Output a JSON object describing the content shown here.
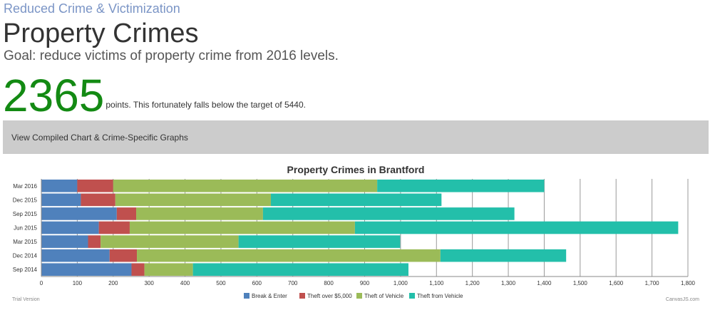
{
  "header": {
    "category": "Reduced Crime & Victimization",
    "title": "Property Crimes",
    "goal": "Goal: reduce victims of property crime from 2016 levels."
  },
  "score": {
    "value": "2365",
    "text": "points. This fortunately falls below the target of 5440."
  },
  "toggle": {
    "label": "View Compiled Chart & Crime-Specific Graphs"
  },
  "footer": {
    "trial": "Trial Version",
    "brand": "CanvasJS.com"
  },
  "chart_data": {
    "type": "bar",
    "orientation": "horizontal",
    "stacked": true,
    "title": "Property Crimes in Brantford",
    "xlabel": "",
    "ylabel": "",
    "xlim": [
      0,
      1800
    ],
    "x_ticks": [
      0,
      100,
      200,
      300,
      400,
      500,
      600,
      700,
      800,
      900,
      1000,
      1100,
      1200,
      1300,
      1400,
      1500,
      1600,
      1700,
      1800
    ],
    "x_tick_labels": [
      "0",
      "100",
      "200",
      "300",
      "400",
      "500",
      "600",
      "700",
      "800",
      "900",
      "1,000",
      "1,100",
      "1,200",
      "1,300",
      "1,400",
      "1,500",
      "1,600",
      "1,700",
      "1,800"
    ],
    "categories": [
      "Sep 2014",
      "Dec 2014",
      "Mar 2015",
      "Jun 2015",
      "Sep 2015",
      "Dec 2015",
      "Mar 2016"
    ],
    "grid": true,
    "legend_position": "bottom",
    "series": [
      {
        "name": "Break & Enter",
        "color": "#4f81bc",
        "values": [
          251,
          190,
          130,
          160,
          210,
          110,
          100
        ]
      },
      {
        "name": "Theft over $5,000",
        "color": "#c0504e",
        "values": [
          36,
          76,
          35,
          86,
          54,
          96,
          100
        ]
      },
      {
        "name": "Theft of Vehicle",
        "color": "#9bbb58",
        "values": [
          135,
          845,
          384,
          627,
          353,
          433,
          735
        ]
      },
      {
        "name": "Theft from Vehicle",
        "color": "#23bfaa",
        "values": [
          600,
          350,
          450,
          900,
          700,
          475,
          465
        ]
      }
    ]
  }
}
